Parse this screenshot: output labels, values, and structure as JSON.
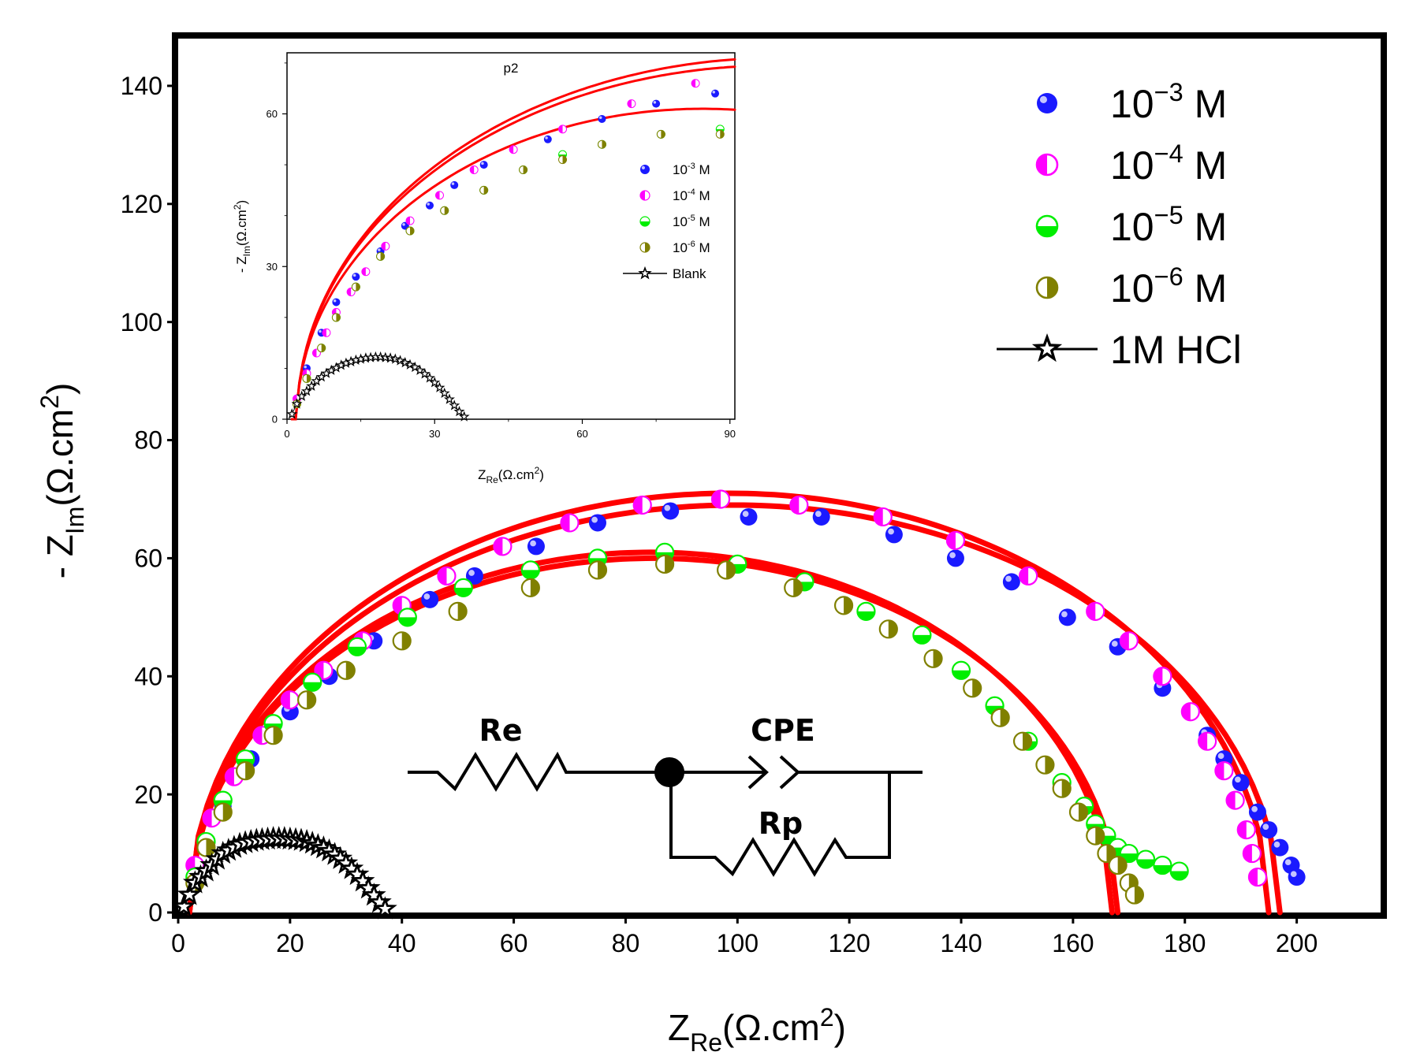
{
  "chart_data": [
    {
      "type": "scatter",
      "name": "main",
      "xlabel_main": "Z",
      "xlabel_sub": "Re",
      "xlabel_unit": "(Ω.cm",
      "xlabel_sup": "2",
      "xlabel_close": ")",
      "ylabel_prefix": "- Z",
      "ylabel_sub": "Im",
      "ylabel_unit": "(Ω.cm",
      "ylabel_sup": "2",
      "ylabel_close": ")",
      "xlim": [
        0,
        215
      ],
      "ylim": [
        0,
        148
      ],
      "xticks": [
        "0",
        "20",
        "40",
        "60",
        "80",
        "100",
        "120",
        "140",
        "160",
        "180",
        "200"
      ],
      "yticks": [
        "0",
        "20",
        "40",
        "60",
        "80",
        "100",
        "120",
        "140"
      ],
      "legend": [
        {
          "base": "10",
          "exp": "−3",
          "unit": " M",
          "marker": "ball",
          "color": "#1a1aff"
        },
        {
          "base": "10",
          "exp": "−4",
          "unit": " M",
          "marker": "half-left",
          "color": "#ff00ff"
        },
        {
          "base": "10",
          "exp": "−5",
          "unit": " M",
          "marker": "half-bottom",
          "color": "#00ee00"
        },
        {
          "base": "10",
          "exp": "−6",
          "unit": " M",
          "marker": "half-right",
          "color": "#808000"
        },
        {
          "label": "1M HCl",
          "marker": "star-line",
          "color": "#000000"
        }
      ],
      "series": [
        {
          "name": "10−3 M",
          "color": "#1a1aff",
          "marker": "ball",
          "x": [
            3,
            8,
            13,
            20,
            27,
            35,
            45,
            53,
            64,
            75,
            88,
            102,
            115,
            128,
            139,
            149,
            159,
            168,
            176,
            184,
            187,
            190,
            193,
            195,
            197,
            199,
            200
          ],
          "y": [
            8,
            18,
            26,
            34,
            40,
            46,
            53,
            57,
            62,
            66,
            68,
            67,
            67,
            64,
            60,
            56,
            50,
            45,
            38,
            30,
            26,
            22,
            17,
            14,
            11,
            8,
            6
          ]
        },
        {
          "name": "10−4 M",
          "color": "#ff00ff",
          "marker": "half-left",
          "x": [
            3,
            6,
            10,
            15,
            20,
            26,
            33,
            40,
            48,
            58,
            70,
            83,
            97,
            111,
            126,
            139,
            152,
            164,
            170,
            176,
            181,
            184,
            187,
            189,
            191,
            192,
            193
          ],
          "y": [
            8,
            16,
            23,
            30,
            36,
            41,
            46,
            52,
            57,
            62,
            66,
            69,
            70,
            69,
            67,
            63,
            57,
            51,
            46,
            40,
            34,
            29,
            24,
            19,
            14,
            10,
            6
          ]
        },
        {
          "name": "10−5 M",
          "color": "#00ee00",
          "marker": "half-bottom",
          "x": [
            3,
            5,
            8,
            12,
            17,
            24,
            32,
            41,
            51,
            63,
            75,
            87,
            100,
            112,
            123,
            133,
            140,
            146,
            152,
            158,
            162,
            164,
            166,
            168,
            170,
            173,
            176,
            179
          ],
          "y": [
            6,
            12,
            19,
            26,
            32,
            39,
            45,
            50,
            55,
            58,
            60,
            61,
            59,
            56,
            51,
            47,
            41,
            35,
            29,
            22,
            18,
            15,
            13,
            11,
            10,
            9,
            8,
            7
          ]
        },
        {
          "name": "10−6 M",
          "color": "#808000",
          "marker": "half-right",
          "x": [
            3,
            5,
            8,
            12,
            17,
            23,
            30,
            40,
            50,
            63,
            75,
            87,
            98,
            110,
            119,
            127,
            135,
            142,
            147,
            151,
            155,
            158,
            161,
            164,
            166,
            168,
            170,
            171
          ],
          "y": [
            5,
            11,
            17,
            24,
            30,
            36,
            41,
            46,
            51,
            55,
            58,
            59,
            58,
            55,
            52,
            48,
            43,
            38,
            33,
            29,
            25,
            21,
            17,
            13,
            10,
            8,
            5,
            3
          ]
        },
        {
          "name": "1M HCl",
          "color": "#000000",
          "marker": "star",
          "x": [
            1,
            2,
            3,
            4,
            5,
            6,
            7,
            8,
            9,
            10,
            11,
            12,
            13,
            14,
            15,
            16,
            17,
            18,
            19,
            20,
            21,
            22,
            23,
            24,
            25,
            26,
            27,
            28,
            29,
            30,
            31,
            32,
            33,
            34,
            35,
            36,
            37
          ],
          "y": [
            1,
            3,
            5,
            6,
            7,
            8,
            9,
            10,
            10.5,
            11,
            11.5,
            11.8,
            12,
            12.2,
            12.3,
            12.4,
            12.5,
            12.5,
            12.5,
            12.4,
            12.3,
            12.2,
            12,
            11.7,
            11.3,
            10.9,
            10.4,
            9.8,
            9.1,
            8.3,
            7.4,
            6.4,
            5.3,
            4.1,
            2.9,
            1.7,
            0.6
          ]
        }
      ],
      "fits": [
        {
          "name": "fit 10−3/10−4 a",
          "color": "#ff0000",
          "x0": 2,
          "x1": 195,
          "cx": 98.5,
          "r": 96.5,
          "h": 71
        },
        {
          "name": "fit 10−3/10−4 b",
          "color": "#ff0000",
          "x0": 2,
          "x1": 197,
          "cx": 99.5,
          "r": 97.5,
          "h": 69
        },
        {
          "name": "fit 10−5/10−6 a",
          "color": "#ff0000",
          "x0": 2,
          "x1": 167,
          "cx": 84.5,
          "r": 82.5,
          "h": 61
        },
        {
          "name": "fit 10−5/10−6 b",
          "color": "#ff0000",
          "x0": 2,
          "x1": 168,
          "cx": 85,
          "r": 83,
          "h": 60
        }
      ]
    },
    {
      "type": "scatter",
      "name": "inset",
      "title": "p2",
      "xlabel_main": "Z",
      "xlabel_sub": "Re",
      "xlabel_unit": "(Ω.cm",
      "xlabel_sup": "2",
      "xlabel_close": ")",
      "ylabel_prefix": "- Z",
      "ylabel_sub": "Im",
      "ylabel_unit": "(Ω.cm",
      "ylabel_sup": "2",
      "ylabel_close": ")",
      "xlim": [
        0,
        91
      ],
      "ylim": [
        0,
        72
      ],
      "xticks": [
        "0",
        "30",
        "60",
        "90"
      ],
      "yticks": [
        "0",
        "30",
        "60"
      ],
      "legend": [
        {
          "base": "10",
          "exp": "-3",
          "unit": " M",
          "marker": "ball",
          "color": "#1a1aff"
        },
        {
          "base": "10",
          "exp": "-4",
          "unit": " M",
          "marker": "half-left",
          "color": "#ff00ff"
        },
        {
          "base": "10",
          "exp": "-5",
          "unit": " M",
          "marker": "half-bottom",
          "color": "#00ee00"
        },
        {
          "base": "10",
          "exp": "-6",
          "unit": " M",
          "marker": "half-right",
          "color": "#808000"
        },
        {
          "label": "Blank",
          "marker": "star-line",
          "color": "#000000"
        }
      ],
      "series": [
        {
          "name": "10−3 M",
          "color": "#1a1aff",
          "marker": "ball",
          "x": [
            2,
            4,
            7,
            10,
            14,
            19,
            24,
            29,
            34,
            40,
            46,
            53,
            64,
            75,
            87
          ],
          "y": [
            4,
            10,
            17,
            23,
            28,
            33,
            38,
            42,
            46,
            50,
            53,
            55,
            59,
            62,
            64
          ]
        },
        {
          "name": "10−4 M",
          "color": "#ff00ff",
          "marker": "half-left",
          "x": [
            2,
            4,
            6,
            8,
            10,
            13,
            16,
            20,
            25,
            31,
            38,
            46,
            56,
            70,
            83
          ],
          "y": [
            4,
            9,
            13,
            17,
            21,
            25,
            29,
            34,
            39,
            44,
            49,
            53,
            57,
            62,
            66
          ]
        },
        {
          "name": "10−5 M",
          "color": "#00ee00",
          "marker": "half-bottom",
          "x": [
            2,
            4,
            7,
            10,
            14,
            19,
            25,
            32,
            40,
            48,
            56,
            64,
            76,
            88
          ],
          "y": [
            3,
            8,
            14,
            20,
            26,
            32,
            37,
            41,
            45,
            49,
            52,
            54,
            56,
            57
          ]
        },
        {
          "name": "10−6 M",
          "color": "#808000",
          "marker": "half-right",
          "x": [
            2,
            4,
            7,
            10,
            14,
            19,
            25,
            32,
            40,
            48,
            56,
            64,
            76,
            88
          ],
          "y": [
            3,
            8,
            14,
            20,
            26,
            32,
            37,
            41,
            45,
            49,
            51,
            54,
            56,
            56
          ]
        },
        {
          "name": "Blank",
          "color": "#000000",
          "marker": "star",
          "x": [
            1,
            2,
            3,
            4,
            5,
            6,
            7,
            8,
            9,
            10,
            11,
            12,
            13,
            14,
            15,
            16,
            17,
            18,
            19,
            20,
            21,
            22,
            23,
            24,
            25,
            26,
            27,
            28,
            29,
            30,
            31,
            32,
            33,
            34,
            35,
            36
          ],
          "y": [
            1,
            3,
            4.5,
            5.5,
            6.5,
            7.5,
            8.3,
            9,
            9.6,
            10.1,
            10.6,
            11,
            11.3,
            11.6,
            11.8,
            12,
            12.1,
            12.2,
            12.2,
            12.1,
            12,
            11.8,
            11.5,
            11.1,
            10.7,
            10.2,
            9.6,
            8.9,
            8.1,
            7.2,
            6.2,
            5.1,
            3.9,
            2.7,
            1.5,
            0.5
          ]
        }
      ],
      "fits": [
        {
          "name": "inset fit a",
          "color": "#ff0000",
          "x0": 1,
          "x1": 91,
          "cx": 100,
          "r": 98,
          "h": 71
        },
        {
          "name": "inset fit b",
          "color": "#ff0000",
          "x0": 1,
          "x1": 91,
          "cx": 99,
          "r": 97,
          "h": 69.5
        },
        {
          "name": "inset fit c",
          "color": "#ff0000",
          "x0": 1,
          "x1": 91,
          "cx": 84.5,
          "r": 82.5,
          "h": 61
        }
      ]
    }
  ],
  "circuit": {
    "re": "Re",
    "cpe": "CPE",
    "rp": "Rp"
  }
}
